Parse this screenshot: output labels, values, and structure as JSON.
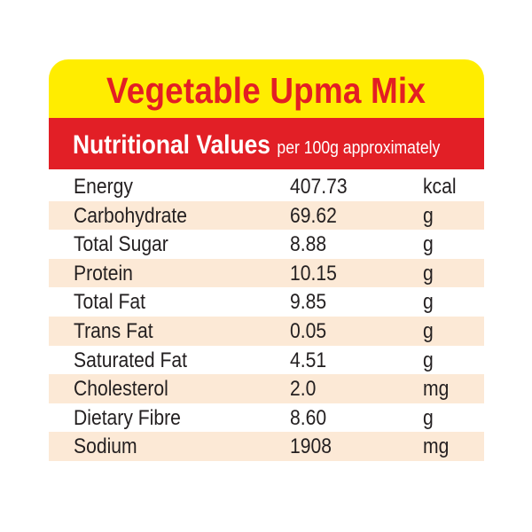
{
  "label": {
    "title": "Vegetable Upma Mix",
    "subtitle": "Nutritional Values",
    "subtitle_note": "per 100g approximately",
    "colors": {
      "title_band": "#ffed00",
      "title_text": "#e31e24",
      "subtitle_band": "#e21f26",
      "row_shade": "#fce9d6"
    },
    "rows": [
      {
        "name": "Energy",
        "value": "407.73",
        "unit": "kcal"
      },
      {
        "name": "Carbohydrate",
        "value": "69.62",
        "unit": "g"
      },
      {
        "name": "Total Sugar",
        "value": "8.88",
        "unit": "g"
      },
      {
        "name": "Protein",
        "value": "10.15",
        "unit": "g"
      },
      {
        "name": "Total Fat",
        "value": "9.85",
        "unit": "g"
      },
      {
        "name": "Trans Fat",
        "value": "0.05",
        "unit": "g"
      },
      {
        "name": "Saturated Fat",
        "value": "4.51",
        "unit": "g"
      },
      {
        "name": "Cholesterol",
        "value": "2.0",
        "unit": "mg"
      },
      {
        "name": "Dietary Fibre",
        "value": "8.60",
        "unit": "g"
      },
      {
        "name": "Sodium",
        "value": "1908",
        "unit": "mg"
      }
    ]
  }
}
